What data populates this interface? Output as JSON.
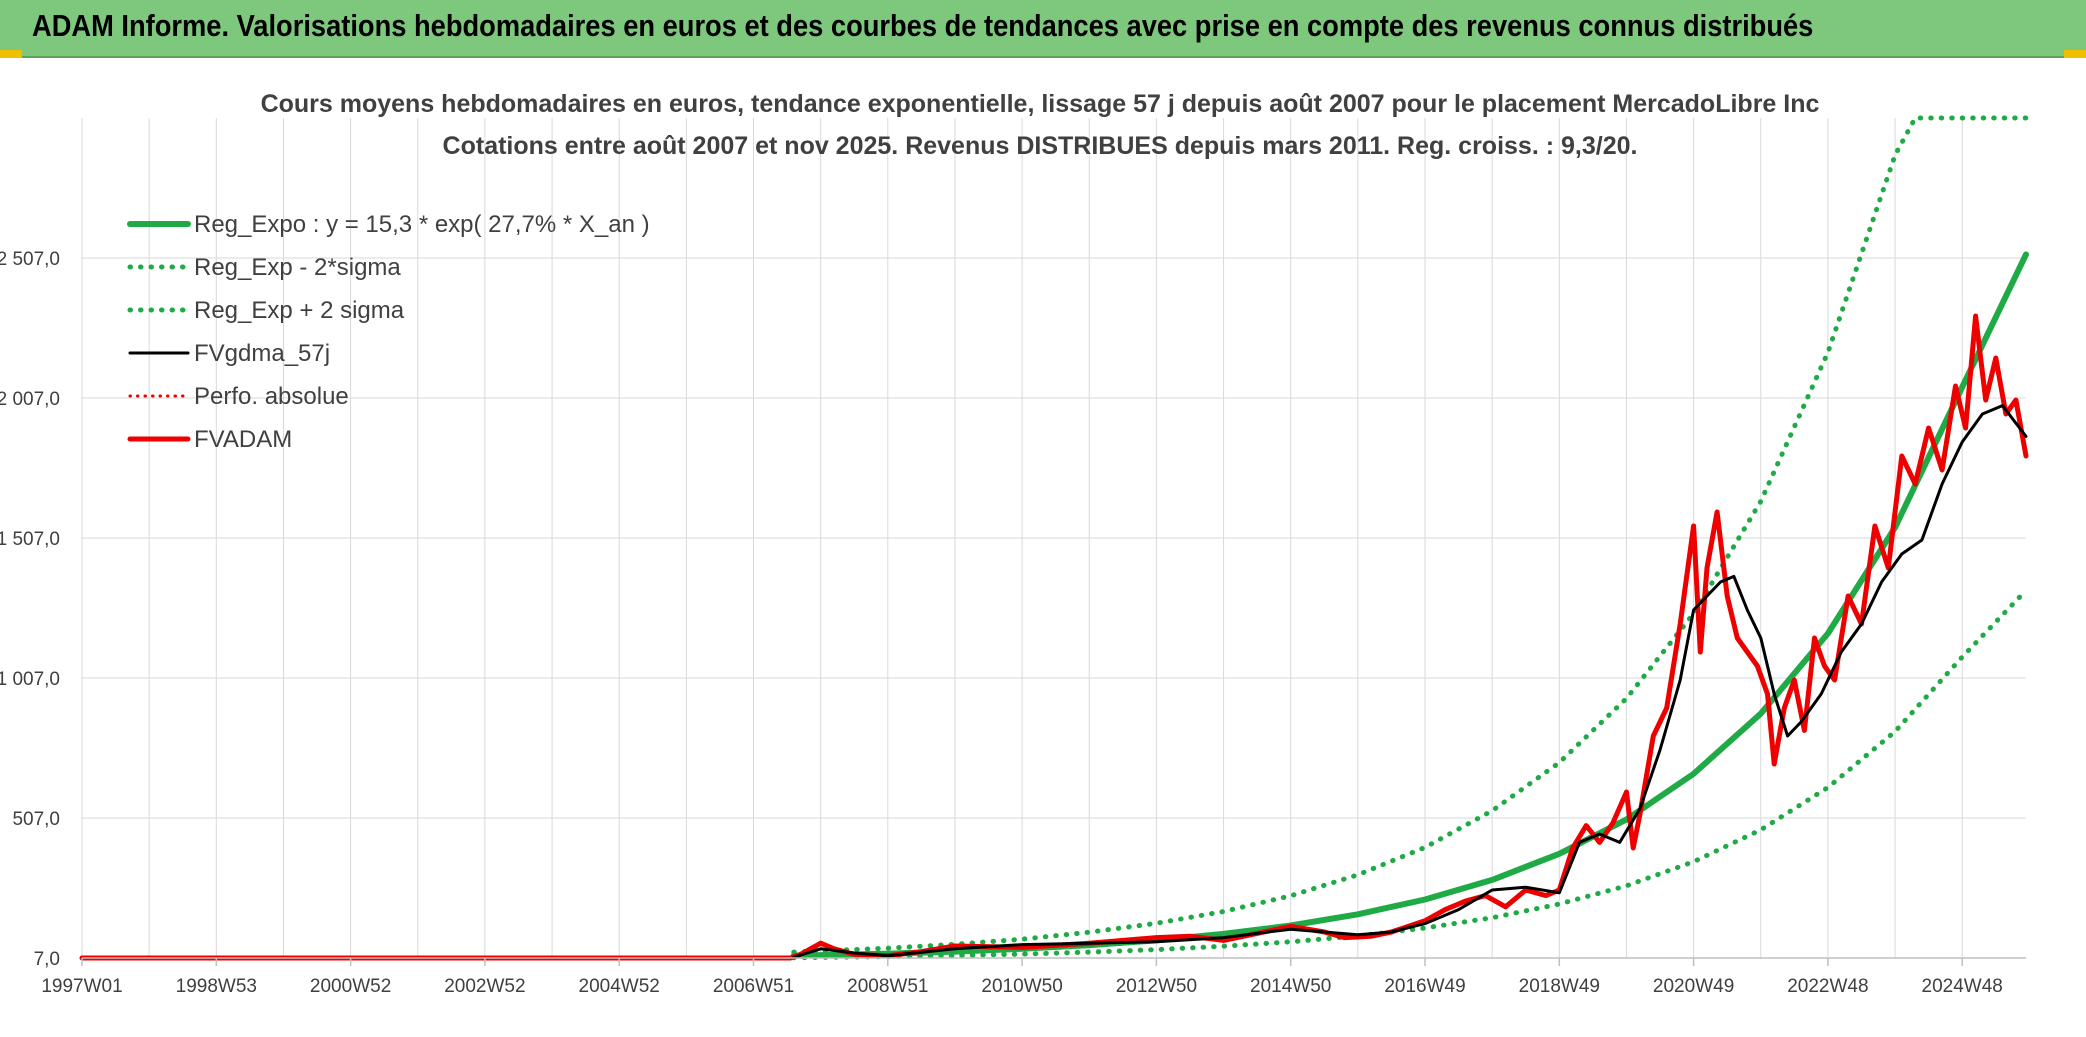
{
  "header": {
    "title": "ADAM Informe. Valorisations hebdomadaires en euros et des courbes de tendances avec prise en compte des revenus connus distribués"
  },
  "colors": {
    "banner": "#7ec87e",
    "green": "#1faa46",
    "black": "#000000",
    "red": "#ee0000",
    "grid": "#d9d9d9",
    "accent": "#f0c000"
  },
  "chart_data": {
    "type": "line",
    "title": "Cours moyens hebdomadaires en euros, tendance exponentielle, lissage 57 j depuis août 2007 pour le placement MercadoLibre Inc",
    "subtitle": "Cotations entre août 2007 et nov 2025. Revenus DISTRIBUES depuis mars 2011. Reg. croiss. : 9,3/20.",
    "xlabel": "",
    "ylabel": "",
    "xlim": [
      1997.0,
      2025.95
    ],
    "ylim": [
      7,
      3007
    ],
    "x_ticks": [
      "1997W01",
      "1998W53",
      "2000W52",
      "2002W52",
      "2004W52",
      "2006W51",
      "2008W51",
      "2010W50",
      "2012W50",
      "2014W50",
      "2016W49",
      "2018W49",
      "2020W49",
      "2022W48",
      "2024W48"
    ],
    "x_tick_positions": [
      1997.0,
      1999.0,
      2001.0,
      2003.0,
      2005.0,
      2007.0,
      2009.0,
      2011.0,
      2013.0,
      2015.0,
      2017.0,
      2019.0,
      2021.0,
      2023.0,
      2025.0
    ],
    "y_ticks": [
      "7,0",
      "507,0",
      "1 007,0",
      "1 507,0",
      "2 007,0",
      "2 507,0"
    ],
    "y_tick_values": [
      7,
      507,
      1007,
      1507,
      2007,
      2507
    ],
    "legend": {
      "placement": "top-left",
      "entries": [
        "Reg_Expo : y = 15,3 * exp( 27,7% *  X_an )",
        "Reg_Exp - 2*sigma",
        "Reg_Exp + 2 sigma",
        "FVgdma_57j",
        "Perfo. absolue",
        "FVADAM"
      ]
    },
    "series": [
      {
        "name": "Reg_Expo : y = 15,3 * exp( 27,7% *  X_an )",
        "style": "solid-green",
        "x": [
          2007.6,
          2009,
          2010,
          2011,
          2012,
          2013,
          2014,
          2015,
          2016,
          2017,
          2018,
          2019,
          2020,
          2021,
          2022,
          2023,
          2024,
          2025,
          2025.95
        ],
        "values": [
          15.3,
          22.6,
          30,
          40,
          53,
          70,
          93,
          123,
          163,
          216,
          286,
          379,
          502,
          665,
          880,
          1166,
          1545,
          2046,
          2520
        ]
      },
      {
        "name": "Reg_Exp - 2*sigma",
        "style": "dotted-green",
        "x": [
          2007.6,
          2009,
          2010,
          2011,
          2012,
          2013,
          2014,
          2015,
          2016,
          2017,
          2018,
          2019,
          2020,
          2021,
          2022,
          2023,
          2024,
          2025,
          2025.95
        ],
        "values": [
          8,
          12,
          16,
          21,
          28,
          37,
          49,
          65,
          86,
          114,
          151,
          200,
          265,
          351,
          465,
          616,
          816,
          1082,
          1320
        ]
      },
      {
        "name": "Reg_Exp + 2 sigma",
        "style": "dotted-green",
        "x": [
          2007.6,
          2009,
          2010,
          2011,
          2012,
          2013,
          2014,
          2015,
          2016,
          2017,
          2018,
          2019,
          2020,
          2021,
          2022,
          2023,
          2024,
          2024.3,
          2025.95
        ],
        "values": [
          28,
          42,
          56,
          74,
          99,
          131,
          173,
          229,
          304,
          402,
          533,
          705,
          934,
          1237,
          1638,
          2170,
          2875,
          3007,
          3007
        ]
      },
      {
        "name": "FVgdma_57j",
        "style": "solid-black",
        "x": [
          2007.6,
          2008,
          2008.5,
          2009,
          2010,
          2011,
          2012,
          2013,
          2014,
          2015,
          2015.5,
          2016,
          2016.5,
          2017,
          2017.5,
          2018,
          2018.5,
          2019,
          2019.3,
          2019.6,
          2019.9,
          2020.2,
          2020.5,
          2020.8,
          2021,
          2021.2,
          2021.4,
          2021.6,
          2021.8,
          2022,
          2022.2,
          2022.4,
          2022.6,
          2022.9,
          2023.2,
          2023.5,
          2023.8,
          2024.1,
          2024.4,
          2024.7,
          2025,
          2025.3,
          2025.6,
          2025.95
        ],
        "values": [
          10,
          40,
          25,
          15,
          40,
          55,
          60,
          65,
          80,
          110,
          100,
          90,
          100,
          130,
          180,
          250,
          260,
          240,
          420,
          450,
          420,
          540,
          750,
          1000,
          1250,
          1300,
          1350,
          1370,
          1250,
          1150,
          950,
          800,
          850,
          950,
          1100,
          1200,
          1350,
          1450,
          1500,
          1700,
          1850,
          1950,
          1980,
          1870
        ]
      },
      {
        "name": "Perfo. absolue",
        "style": "dotted-red",
        "x": [
          1997.0,
          2007.55
        ],
        "values": [
          7,
          7
        ]
      },
      {
        "name": "FVADAM",
        "style": "solid-red",
        "x": [
          1997.0,
          2007.55,
          2007.7,
          2008,
          2008.2,
          2008.5,
          2009,
          2009.5,
          2010,
          2011,
          2012,
          2013,
          2013.5,
          2014,
          2014.5,
          2015,
          2015.5,
          2015.8,
          2016.2,
          2016.5,
          2017,
          2017.3,
          2017.6,
          2017.9,
          2018.2,
          2018.5,
          2018.8,
          2019,
          2019.2,
          2019.4,
          2019.6,
          2019.8,
          2020,
          2020.1,
          2020.2,
          2020.4,
          2020.6,
          2020.8,
          2021,
          2021.1,
          2021.2,
          2021.35,
          2021.5,
          2021.65,
          2021.8,
          2021.95,
          2022.1,
          2022.2,
          2022.35,
          2022.5,
          2022.65,
          2022.8,
          2022.95,
          2023.1,
          2023.3,
          2023.5,
          2023.7,
          2023.9,
          2024.1,
          2024.3,
          2024.5,
          2024.7,
          2024.9,
          2025.05,
          2025.2,
          2025.35,
          2025.5,
          2025.65,
          2025.8,
          2025.95
        ],
        "values": [
          7,
          7,
          20,
          60,
          40,
          20,
          15,
          30,
          50,
          45,
          60,
          80,
          85,
          70,
          95,
          120,
          100,
          80,
          85,
          100,
          140,
          180,
          210,
          230,
          190,
          250,
          230,
          250,
          400,
          480,
          420,
          490,
          600,
          400,
          520,
          800,
          900,
          1200,
          1550,
          1100,
          1400,
          1600,
          1300,
          1150,
          1100,
          1050,
          950,
          700,
          900,
          1000,
          820,
          1150,
          1050,
          1000,
          1300,
          1200,
          1550,
          1400,
          1800,
          1700,
          1900,
          1750,
          2050,
          1900,
          2300,
          2000,
          2150,
          1950,
          2000,
          1800
        ]
      }
    ]
  }
}
